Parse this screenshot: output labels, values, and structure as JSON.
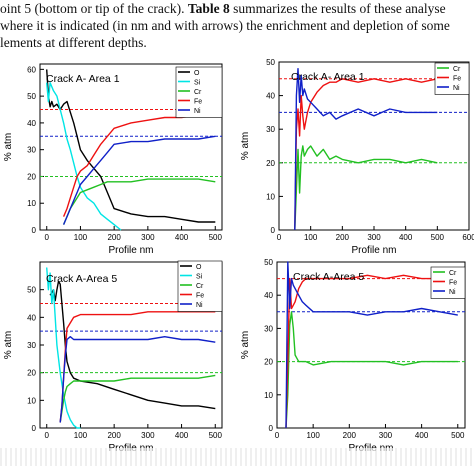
{
  "text": {
    "line1_pre": "oint 5 (bottom or tip of the crack). ",
    "line1_bold": "Table 8",
    "line1_post": " summarizes the results of these analyse",
    "line2": "where it is indicated (in nm and with arrows) the enrichment and depletion of some",
    "line3": "lements at different depths."
  },
  "colors": {
    "O": "#000000",
    "Si": "#00e5e5",
    "Cr": "#22c022",
    "Fe": "#ee1111",
    "Ni": "#1020c8"
  },
  "chart_data": [
    {
      "type": "line",
      "title": "Crack A- Area 1",
      "xlabel": "Profile nm",
      "ylabel": "% atm",
      "xlim": [
        -20,
        520
      ],
      "ylim": [
        0,
        62
      ],
      "xticks": [
        0,
        100,
        200,
        300,
        400,
        500
      ],
      "yticks": [
        0,
        10,
        20,
        30,
        40,
        50,
        60
      ],
      "legend": "top-right",
      "reference_lines": [
        {
          "y": 45,
          "color": "#ee1111"
        },
        {
          "y": 35,
          "color": "#1020c8"
        },
        {
          "y": 20,
          "color": "#22c022"
        }
      ],
      "series": [
        {
          "name": "O",
          "key": "O",
          "x": [
            0,
            5,
            10,
            15,
            20,
            30,
            40,
            50,
            60,
            70,
            80,
            90,
            100,
            120,
            140,
            160,
            180,
            200,
            250,
            300,
            350,
            400,
            450,
            500
          ],
          "values": [
            60,
            50,
            46,
            48,
            46,
            47,
            45,
            47,
            48,
            44,
            40,
            35,
            30,
            26,
            23,
            20,
            14,
            8,
            6,
            5,
            5,
            4,
            3,
            3
          ]
        },
        {
          "name": "Si",
          "key": "Si",
          "x": [
            0,
            5,
            10,
            20,
            30,
            40,
            50,
            60,
            70,
            80,
            90,
            100,
            120,
            140,
            160,
            180,
            200,
            220
          ],
          "values": [
            55,
            48,
            55,
            52,
            50,
            45,
            40,
            34,
            30,
            25,
            20,
            16,
            12,
            10,
            6,
            4,
            2,
            0
          ]
        },
        {
          "name": "Cr",
          "key": "Cr",
          "x": [
            50,
            60,
            70,
            80,
            90,
            100,
            120,
            140,
            160,
            180,
            200,
            250,
            300,
            350,
            400,
            450,
            500
          ],
          "values": [
            2,
            5,
            8,
            10,
            12,
            14,
            15,
            16,
            17,
            18,
            18,
            18,
            19,
            19,
            19,
            19,
            18
          ]
        },
        {
          "name": "Fe",
          "key": "Fe",
          "x": [
            50,
            60,
            70,
            80,
            90,
            100,
            120,
            140,
            160,
            180,
            200,
            250,
            300,
            350,
            400,
            450,
            500
          ],
          "values": [
            5,
            8,
            12,
            16,
            20,
            22,
            24,
            28,
            32,
            35,
            38,
            40,
            41,
            42,
            42,
            43,
            43
          ]
        },
        {
          "name": "Ni",
          "key": "Ni",
          "x": [
            50,
            60,
            70,
            80,
            90,
            100,
            120,
            140,
            160,
            180,
            200,
            250,
            300,
            350,
            400,
            450,
            500
          ],
          "values": [
            2,
            5,
            8,
            11,
            14,
            17,
            20,
            23,
            26,
            29,
            32,
            33,
            33,
            34,
            34,
            34,
            35
          ]
        }
      ]
    },
    {
      "type": "line",
      "title": "Crack A- Area 1",
      "xlabel": "Profile nm",
      "ylabel": "% atm",
      "xlim": [
        0,
        600
      ],
      "ylim": [
        0,
        50
      ],
      "xticks": [
        0,
        100,
        200,
        300,
        400,
        500,
        600
      ],
      "yticks": [
        0,
        10,
        20,
        30,
        40,
        50
      ],
      "legend": "top-right",
      "reference_lines": [
        {
          "y": 45,
          "color": "#ee1111"
        },
        {
          "y": 35,
          "color": "#1020c8"
        },
        {
          "y": 20,
          "color": "#22c022"
        }
      ],
      "series": [
        {
          "name": "Cr",
          "key": "Cr",
          "x": [
            50,
            55,
            60,
            65,
            70,
            75,
            80,
            90,
            100,
            120,
            140,
            160,
            180,
            200,
            250,
            300,
            350,
            400,
            450,
            500
          ],
          "values": [
            0,
            12,
            24,
            11,
            22,
            25,
            22,
            24,
            25,
            22,
            24,
            21,
            22,
            21,
            20,
            21,
            21,
            20,
            21,
            20
          ]
        },
        {
          "name": "Fe",
          "key": "Fe",
          "x": [
            50,
            55,
            60,
            65,
            70,
            75,
            80,
            90,
            100,
            120,
            140,
            160,
            180,
            200,
            250,
            300,
            350,
            400,
            450,
            500
          ],
          "values": [
            0,
            30,
            36,
            28,
            40,
            34,
            30,
            35,
            38,
            41,
            43,
            44,
            44,
            45,
            44,
            45,
            44,
            45,
            44,
            45
          ]
        },
        {
          "name": "Ni",
          "key": "Ni",
          "x": [
            50,
            55,
            60,
            65,
            70,
            75,
            80,
            90,
            100,
            120,
            140,
            160,
            180,
            200,
            250,
            300,
            350,
            400,
            450,
            500
          ],
          "values": [
            0,
            40,
            48,
            38,
            46,
            40,
            42,
            39,
            38,
            36,
            34,
            35,
            33,
            34,
            36,
            34,
            36,
            35,
            35,
            35
          ]
        }
      ]
    },
    {
      "type": "line",
      "title": "Crack A-Area 5",
      "xlabel": "Profile nm",
      "ylabel": "% atm",
      "xlim": [
        -20,
        520
      ],
      "ylim": [
        0,
        60
      ],
      "xticks": [
        0,
        100,
        200,
        300,
        400,
        500
      ],
      "yticks": [
        0,
        10,
        20,
        30,
        40,
        50
      ],
      "legend": "top-right",
      "reference_lines": [
        {
          "y": 45,
          "color": "#ee1111"
        },
        {
          "y": 35,
          "color": "#1020c8"
        },
        {
          "y": 20,
          "color": "#22c022"
        }
      ],
      "series": [
        {
          "name": "O",
          "key": "O",
          "x": [
            10,
            20,
            25,
            30,
            35,
            40,
            45,
            50,
            55,
            60,
            70,
            80,
            100,
            150,
            200,
            250,
            300,
            350,
            400,
            450,
            500
          ],
          "values": [
            48,
            50,
            46,
            50,
            53,
            52,
            45,
            38,
            30,
            24,
            20,
            18,
            17,
            16,
            14,
            12,
            10,
            9,
            8,
            8,
            7
          ]
        },
        {
          "name": "Si",
          "key": "Si",
          "x": [
            0,
            5,
            10,
            15,
            20,
            25,
            30,
            40,
            50,
            60,
            70,
            80,
            90,
            100
          ],
          "values": [
            58,
            50,
            56,
            45,
            50,
            40,
            30,
            20,
            12,
            6,
            3,
            1,
            0,
            0
          ]
        },
        {
          "name": "Cr",
          "key": "Cr",
          "x": [
            40,
            45,
            50,
            55,
            60,
            70,
            80,
            100,
            150,
            200,
            250,
            300,
            350,
            400,
            450,
            500
          ],
          "values": [
            2,
            6,
            10,
            13,
            15,
            16,
            17,
            17,
            17,
            17,
            18,
            18,
            18,
            18,
            18,
            19
          ]
        },
        {
          "name": "Fe",
          "key": "Fe",
          "x": [
            40,
            45,
            50,
            55,
            60,
            70,
            80,
            100,
            150,
            200,
            250,
            300,
            350,
            400,
            450,
            500
          ],
          "values": [
            2,
            8,
            18,
            28,
            36,
            38,
            40,
            41,
            41,
            41,
            41,
            42,
            42,
            42,
            42,
            42
          ]
        },
        {
          "name": "Ni",
          "key": "Ni",
          "x": [
            40,
            45,
            50,
            55,
            60,
            70,
            80,
            100,
            150,
            200,
            250,
            300,
            350,
            400,
            450,
            500
          ],
          "values": [
            2,
            8,
            18,
            26,
            32,
            33,
            32,
            32,
            32,
            32,
            32,
            32,
            33,
            32,
            32,
            31
          ]
        }
      ]
    },
    {
      "type": "line",
      "title": "Crack A-Area 5",
      "xlabel": "Profile nm",
      "ylabel": "% atm",
      "xlim": [
        0,
        520
      ],
      "ylim": [
        0,
        50
      ],
      "xticks": [
        0,
        100,
        200,
        300,
        400,
        500
      ],
      "yticks": [
        0,
        10,
        20,
        30,
        40,
        50
      ],
      "legend": "top-right",
      "reference_lines": [
        {
          "y": 45,
          "color": "#ee1111"
        },
        {
          "y": 35,
          "color": "#1020c8"
        },
        {
          "y": 20,
          "color": "#22c022"
        }
      ],
      "series": [
        {
          "name": "Cr",
          "key": "Cr",
          "x": [
            25,
            30,
            35,
            40,
            45,
            50,
            55,
            60,
            70,
            80,
            100,
            150,
            200,
            250,
            300,
            350,
            400,
            450,
            500
          ],
          "values": [
            0,
            10,
            31,
            35,
            30,
            22,
            21,
            20,
            20,
            20,
            19,
            20,
            20,
            20,
            20,
            19,
            20,
            20,
            20
          ]
        },
        {
          "name": "Fe",
          "key": "Fe",
          "x": [
            25,
            30,
            35,
            40,
            45,
            50,
            55,
            60,
            70,
            80,
            100,
            150,
            200,
            250,
            300,
            350,
            400,
            450,
            500
          ],
          "values": [
            0,
            20,
            45,
            36,
            37,
            38,
            40,
            42,
            44,
            45,
            45,
            45,
            45,
            46,
            45,
            46,
            45,
            45,
            46
          ]
        },
        {
          "name": "Ni",
          "key": "Ni",
          "x": [
            25,
            30,
            35,
            40,
            45,
            50,
            55,
            60,
            70,
            80,
            100,
            150,
            200,
            250,
            300,
            350,
            400,
            450,
            500
          ],
          "values": [
            0,
            50,
            36,
            45,
            43,
            42,
            41,
            40,
            38,
            37,
            35,
            35,
            35,
            34,
            35,
            35,
            36,
            35,
            34
          ]
        }
      ]
    }
  ]
}
